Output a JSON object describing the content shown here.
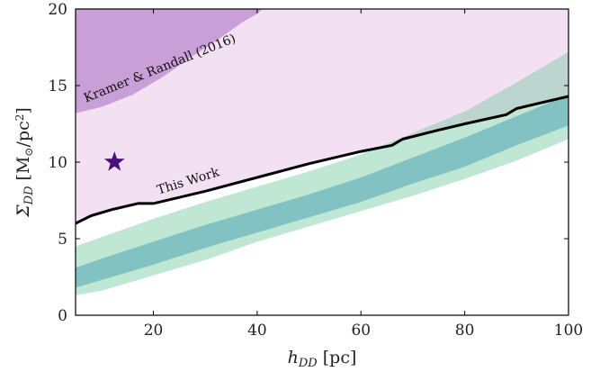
{
  "chart_data": {
    "type": "area",
    "xlabel": "h_DD [pc]",
    "ylabel": "Σ_DD [M⊙/pc²]",
    "xlim": [
      5,
      100
    ],
    "ylim": [
      0,
      20
    ],
    "xticks": [
      20,
      40,
      60,
      80,
      100
    ],
    "yticks": [
      0,
      5,
      10,
      15,
      20
    ],
    "grid": false,
    "colors": {
      "excluded_region": "#f3e0f3",
      "kramer_region": "#c89fd6",
      "green_outer": "#bfe7d4",
      "teal_inner": "#7fc0c2",
      "overlap_outer": "#bcd6cf",
      "this_work_line": "#000000",
      "star": "#4b0f7e"
    },
    "regions": {
      "kramer_randall_2016": {
        "x": [
          5,
          10,
          16,
          22,
          27,
          32,
          37,
          40,
          41
        ],
        "y": [
          13.2,
          13.6,
          14.4,
          15.6,
          16.8,
          17.9,
          19.1,
          19.7,
          20
        ]
      }
    },
    "series": [
      {
        "name": "This Work",
        "x": [
          5,
          8,
          12,
          17,
          20,
          30,
          40,
          50,
          60,
          66,
          68,
          75,
          80,
          88,
          90,
          95,
          100
        ],
        "y": [
          6.0,
          6.5,
          6.9,
          7.3,
          7.3,
          8.1,
          9.0,
          9.9,
          10.7,
          11.1,
          11.5,
          12.1,
          12.5,
          13.1,
          13.5,
          13.9,
          14.3
        ]
      },
      {
        "name": "outer band",
        "x": [
          5,
          10,
          20,
          30,
          40,
          50,
          60,
          70,
          80,
          90,
          100
        ],
        "lower": [
          1.3,
          1.6,
          2.6,
          3.6,
          4.8,
          5.8,
          6.8,
          7.8,
          8.9,
          10.1,
          11.5
        ],
        "upper": [
          4.5,
          5.1,
          6.3,
          7.4,
          8.4,
          9.4,
          10.5,
          11.9,
          13.3,
          15.2,
          17.2
        ]
      },
      {
        "name": "inner band",
        "x": [
          5,
          10,
          20,
          30,
          40,
          50,
          60,
          70,
          80,
          90,
          100
        ],
        "lower": [
          1.8,
          2.3,
          3.3,
          4.4,
          5.4,
          6.4,
          7.4,
          8.6,
          9.7,
          11.1,
          12.4
        ],
        "upper": [
          3.1,
          3.7,
          4.8,
          5.9,
          6.9,
          7.9,
          9.0,
          10.3,
          11.6,
          13.0,
          14.4
        ]
      }
    ],
    "markers": [
      {
        "x": 12.5,
        "y": 10.0,
        "shape": "star"
      }
    ],
    "annotations": [
      {
        "text": "Kramer & Randall (2016)",
        "x": 7.0,
        "y": 13.9,
        "rotation": -22
      },
      {
        "text": "This Work",
        "x": 21.0,
        "y": 7.9,
        "rotation": -17
      }
    ]
  }
}
